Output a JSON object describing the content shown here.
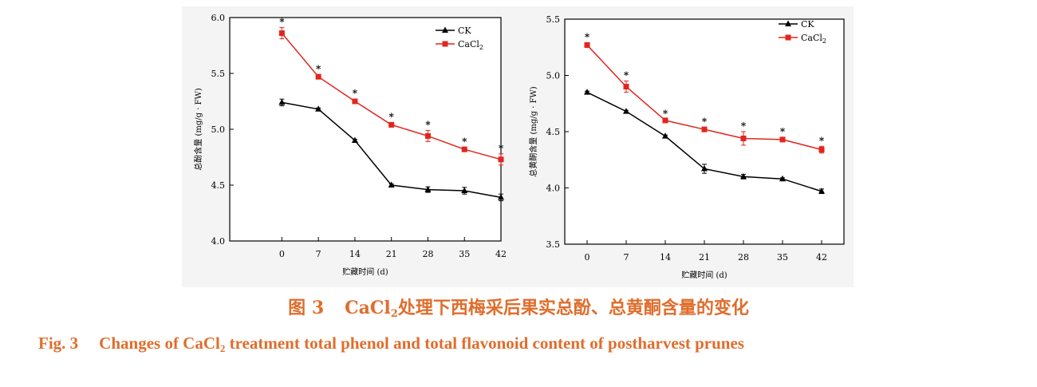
{
  "chart_data": [
    {
      "type": "line",
      "xlabel": "贮藏时间 (d)",
      "ylabel": "总酚含量 (mg/g · FW)",
      "x": [
        0,
        7,
        14,
        21,
        28,
        35,
        42
      ],
      "xlim": [
        -10,
        42
      ],
      "ylim": [
        4.0,
        6.0
      ],
      "yticks": [
        "4.0",
        "4.5",
        "5.0",
        "5.5",
        "6.0"
      ],
      "grid": false,
      "legend_position": "top-right",
      "series": [
        {
          "name": "CK",
          "color": "#000000",
          "marker": "triangle",
          "values": [
            5.24,
            5.18,
            4.9,
            4.5,
            4.46,
            4.45,
            4.39
          ],
          "errors": [
            0.03,
            0.01,
            0.01,
            0.01,
            0.025,
            0.03,
            0.03
          ]
        },
        {
          "name": "CaCl2",
          "color": "#e2251d",
          "marker": "square",
          "values": [
            5.86,
            5.47,
            5.25,
            5.04,
            4.94,
            4.82,
            4.73
          ],
          "errors": [
            0.05,
            0.02,
            0.02,
            0.02,
            0.05,
            0.02,
            0.05
          ]
        }
      ],
      "annotations": [
        "*",
        "*",
        "*",
        "*",
        "*",
        "*",
        "*"
      ]
    },
    {
      "type": "line",
      "xlabel": "贮藏时间 (d)",
      "ylabel": "总黄酮含量 (mg/g · FW)",
      "x": [
        0,
        7,
        14,
        21,
        28,
        35,
        42
      ],
      "xlim": [
        -4,
        46
      ],
      "ylim": [
        3.5,
        5.5
      ],
      "yticks": [
        "3.5",
        "4.0",
        "4.5",
        "5.0",
        "5.5"
      ],
      "grid": false,
      "legend_position": "top-right",
      "series": [
        {
          "name": "CK",
          "color": "#000000",
          "marker": "triangle",
          "values": [
            4.85,
            4.68,
            4.46,
            4.17,
            4.1,
            4.08,
            3.97
          ],
          "errors": [
            0.01,
            0.01,
            0.01,
            0.04,
            0.02,
            0.01,
            0.02
          ]
        },
        {
          "name": "CaCl2",
          "color": "#e2251d",
          "marker": "square",
          "values": [
            5.27,
            4.9,
            4.6,
            4.52,
            4.44,
            4.43,
            4.34
          ],
          "errors": [
            0.02,
            0.05,
            0.01,
            0.02,
            0.06,
            0.02,
            0.03
          ]
        }
      ],
      "annotations": [
        "*",
        "*",
        "*",
        "*",
        "*",
        "*",
        "*"
      ]
    }
  ],
  "caption": {
    "cn_label": "图 3",
    "cn_chem_main": "CaCl",
    "cn_chem_sub": "2",
    "cn_text": "处理下西梅采后果实总酚、总黄酮含量的变化",
    "en_label": "Fig. 3",
    "en_text_before": "Changes of CaCl",
    "en_sub": "2",
    "en_text_after": " treatment total phenol and total flavonoid content of postharvest prunes"
  }
}
